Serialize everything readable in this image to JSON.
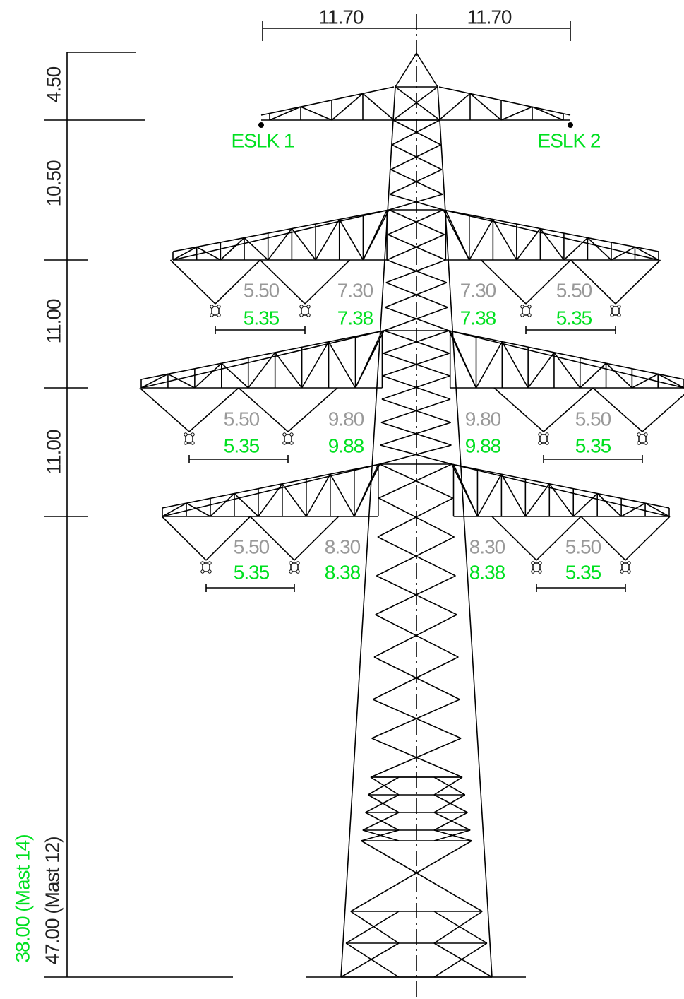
{
  "dimensions": {
    "top": [
      "11.70",
      "11.70"
    ],
    "heights": [
      "4.50",
      "10.50",
      "11.00",
      "11.00"
    ],
    "total_mast_12": "47.00 (Mast 12)",
    "total_mast_14": "38.00 (Mast 14)"
  },
  "earth_wires": [
    "ESLK 1",
    "ESLK 2"
  ],
  "crossarms": [
    {
      "gray": [
        "5.50",
        "7.30",
        "7.30",
        "5.50"
      ],
      "green": [
        "5.35",
        "7.38",
        "7.38",
        "5.35"
      ]
    },
    {
      "gray": [
        "5.50",
        "9.80",
        "9.80",
        "5.50"
      ],
      "green": [
        "5.35",
        "9.88",
        "9.88",
        "5.35"
      ]
    },
    {
      "gray": [
        "5.50",
        "8.30",
        "8.30",
        "5.50"
      ],
      "green": [
        "5.35",
        "8.38",
        "8.38",
        "5.35"
      ]
    }
  ]
}
